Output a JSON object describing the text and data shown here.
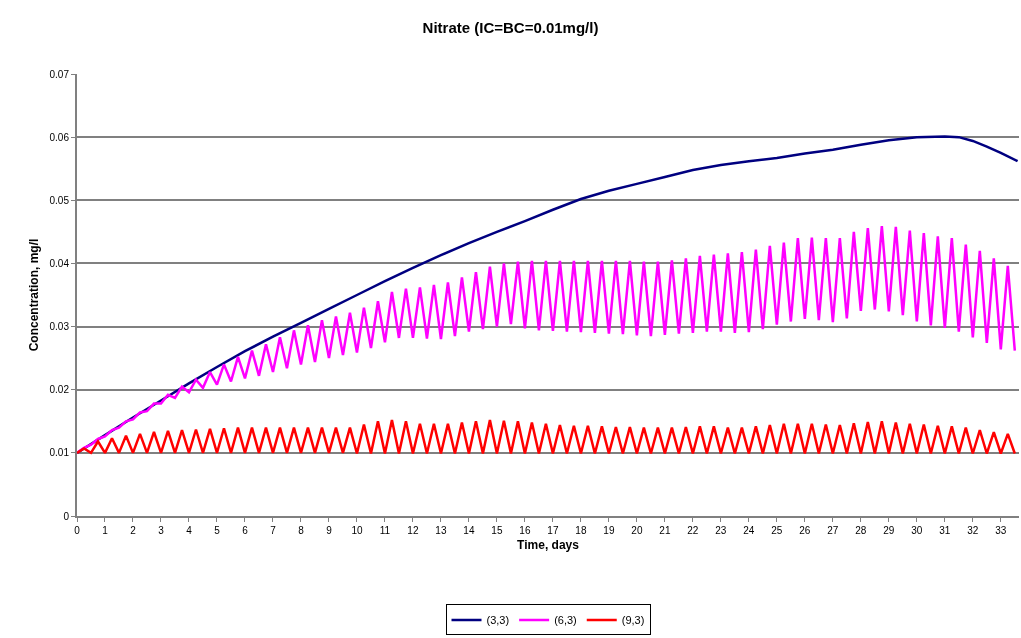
{
  "chart_data": {
    "type": "line",
    "title": "Nitrate (IC=BC=0.01mg/l)",
    "xlabel": "Time, days",
    "ylabel": "Concentration, mg/l",
    "xlim": [
      0,
      33.65
    ],
    "xticks": [
      0,
      1,
      2,
      3,
      4,
      5,
      6,
      7,
      8,
      9,
      10,
      11,
      12,
      13,
      14,
      15,
      16,
      17,
      18,
      19,
      20,
      21,
      22,
      23,
      24,
      25,
      26,
      27,
      28,
      29,
      30,
      31,
      32,
      33
    ],
    "ylim": [
      0,
      0.07
    ],
    "yticks": [
      0,
      0.01,
      0.02,
      0.03,
      0.04,
      0.05,
      0.06,
      0.07
    ],
    "grid": "y",
    "legend": "bottom",
    "marker": "none",
    "line_style": "solid",
    "series": [
      {
        "name": "(3,3)",
        "color": "#000080",
        "x": [
          0,
          1,
          2,
          3,
          4,
          5,
          6,
          7,
          8,
          9,
          10,
          11,
          12,
          13,
          14,
          15,
          16,
          17,
          18,
          19,
          20,
          21,
          22,
          23,
          24,
          25,
          26,
          27,
          28,
          29,
          30,
          31,
          31.5,
          32,
          32.5,
          33,
          33.6
        ],
        "values": [
          0.01,
          0.0128,
          0.0156,
          0.0183,
          0.021,
          0.0236,
          0.0261,
          0.0284,
          0.0306,
          0.0328,
          0.035,
          0.0372,
          0.0393,
          0.0413,
          0.0432,
          0.045,
          0.0467,
          0.0485,
          0.0502,
          0.0515,
          0.0526,
          0.0537,
          0.0548,
          0.0556,
          0.0562,
          0.0567,
          0.0574,
          0.058,
          0.0588,
          0.0595,
          0.06,
          0.0601,
          0.06,
          0.0594,
          0.0585,
          0.0575,
          0.0562
        ]
      },
      {
        "name": "(6,3)",
        "color": "#ff00ff",
        "x": [
          0,
          0.25,
          0.5,
          0.75,
          1,
          1.25,
          1.5,
          1.75,
          2,
          2.25,
          2.5,
          2.75,
          3,
          3.25,
          3.5,
          3.75,
          4,
          4.25,
          4.5,
          4.75,
          5,
          5.25,
          5.5,
          5.75,
          6,
          6.25,
          6.5,
          6.75,
          7,
          7.25,
          7.5,
          7.75,
          8,
          8.25,
          8.5,
          8.75,
          9,
          9.25,
          9.5,
          9.75,
          10,
          10.25,
          10.5,
          10.75,
          11,
          11.25,
          11.5,
          11.75,
          12,
          12.25,
          12.5,
          12.75,
          13,
          13.25,
          13.5,
          13.75,
          14,
          14.25,
          14.5,
          14.75,
          15,
          15.25,
          15.5,
          15.75,
          16,
          16.25,
          16.5,
          16.75,
          17,
          17.25,
          17.5,
          17.75,
          18,
          18.25,
          18.5,
          18.75,
          19,
          19.25,
          19.5,
          19.75,
          20,
          20.25,
          20.5,
          20.75,
          21,
          21.25,
          21.5,
          21.75,
          22,
          22.25,
          22.5,
          22.75,
          23,
          23.25,
          23.5,
          23.75,
          24,
          24.25,
          24.5,
          24.75,
          25,
          25.25,
          25.5,
          25.75,
          26,
          26.25,
          26.5,
          26.75,
          27,
          27.25,
          27.5,
          27.75,
          28,
          28.25,
          28.5,
          28.75,
          29,
          29.25,
          29.5,
          29.75,
          30,
          30.25,
          30.5,
          30.75,
          31,
          31.25,
          31.5,
          31.75,
          32,
          32.25,
          32.5,
          32.75,
          33,
          33.25,
          33.5
        ],
        "values": [
          0.01,
          0.0108,
          0.0113,
          0.0122,
          0.0126,
          0.0136,
          0.014,
          0.015,
          0.0153,
          0.0164,
          0.0166,
          0.0178,
          0.0178,
          0.0192,
          0.0187,
          0.0205,
          0.0196,
          0.0216,
          0.0203,
          0.0228,
          0.0208,
          0.024,
          0.0213,
          0.0252,
          0.0218,
          0.0262,
          0.0222,
          0.0272,
          0.0228,
          0.0283,
          0.0234,
          0.0294,
          0.024,
          0.0302,
          0.0244,
          0.031,
          0.025,
          0.0316,
          0.0255,
          0.0322,
          0.0259,
          0.033,
          0.0266,
          0.034,
          0.0275,
          0.0355,
          0.0282,
          0.036,
          0.0282,
          0.0362,
          0.0281,
          0.0366,
          0.028,
          0.037,
          0.0285,
          0.0378,
          0.0292,
          0.0386,
          0.0296,
          0.0395,
          0.03,
          0.04,
          0.0304,
          0.0403,
          0.0297,
          0.0404,
          0.0294,
          0.0404,
          0.0293,
          0.0404,
          0.0292,
          0.0404,
          0.0291,
          0.0404,
          0.029,
          0.0404,
          0.0289,
          0.0404,
          0.0288,
          0.0404,
          0.0286,
          0.0403,
          0.0285,
          0.0403,
          0.0287,
          0.0405,
          0.0289,
          0.0408,
          0.029,
          0.0412,
          0.0292,
          0.0414,
          0.0292,
          0.0416,
          0.029,
          0.0418,
          0.0291,
          0.0422,
          0.0296,
          0.0428,
          0.0303,
          0.0433,
          0.0308,
          0.044,
          0.0312,
          0.0441,
          0.031,
          0.044,
          0.0307,
          0.044,
          0.0313,
          0.045,
          0.0325,
          0.0456,
          0.0327,
          0.0459,
          0.0324,
          0.0458,
          0.0318,
          0.0452,
          0.0308,
          0.0448,
          0.0302,
          0.0443,
          0.0298,
          0.044,
          0.0292,
          0.043,
          0.0283,
          0.042,
          0.0274,
          0.0408,
          0.0264,
          0.0396,
          0.0262
        ]
      },
      {
        "name": "(9,3)",
        "color": "#ff0000",
        "x": [
          0,
          0.25,
          0.5,
          0.75,
          1,
          1.25,
          1.5,
          1.75,
          2,
          2.25,
          2.5,
          2.75,
          3,
          3.25,
          3.5,
          3.75,
          4,
          4.25,
          4.5,
          4.75,
          5,
          5.25,
          5.5,
          5.75,
          6,
          6.25,
          6.5,
          6.75,
          7,
          7.25,
          7.5,
          7.75,
          8,
          8.25,
          8.5,
          8.75,
          9,
          9.25,
          9.5,
          9.75,
          10,
          10.25,
          10.5,
          10.75,
          11,
          11.25,
          11.5,
          11.75,
          12,
          12.25,
          12.5,
          12.75,
          13,
          13.25,
          13.5,
          13.75,
          14,
          14.25,
          14.5,
          14.75,
          15,
          15.25,
          15.5,
          15.75,
          16,
          16.25,
          16.5,
          16.75,
          17,
          17.25,
          17.5,
          17.75,
          18,
          18.25,
          18.5,
          18.75,
          19,
          19.25,
          19.5,
          19.75,
          20,
          20.25,
          20.5,
          20.75,
          21,
          21.25,
          21.5,
          21.75,
          22,
          22.25,
          22.5,
          22.75,
          23,
          23.25,
          23.5,
          23.75,
          24,
          24.25,
          24.5,
          24.75,
          25,
          25.25,
          25.5,
          25.75,
          26,
          26.25,
          26.5,
          26.75,
          27,
          27.25,
          27.5,
          27.75,
          28,
          28.25,
          28.5,
          28.75,
          29,
          29.25,
          29.5,
          29.75,
          30,
          30.25,
          30.5,
          30.75,
          31,
          31.25,
          31.5,
          31.75,
          32,
          32.25,
          32.5,
          32.75,
          33,
          33.25,
          33.5
        ],
        "values": [
          0.01,
          0.0107,
          0.01,
          0.0118,
          0.01,
          0.0123,
          0.01,
          0.0127,
          0.01,
          0.013,
          0.01,
          0.0133,
          0.01,
          0.0135,
          0.01,
          0.0136,
          0.01,
          0.0137,
          0.01,
          0.0138,
          0.01,
          0.0139,
          0.01,
          0.014,
          0.01,
          0.014,
          0.01,
          0.014,
          0.01,
          0.014,
          0.01,
          0.014,
          0.01,
          0.014,
          0.01,
          0.014,
          0.01,
          0.014,
          0.01,
          0.014,
          0.0099,
          0.0145,
          0.0099,
          0.015,
          0.0099,
          0.0152,
          0.0099,
          0.015,
          0.0099,
          0.0146,
          0.0099,
          0.0146,
          0.0099,
          0.0146,
          0.0099,
          0.0148,
          0.0099,
          0.015,
          0.0099,
          0.0152,
          0.0099,
          0.0151,
          0.0099,
          0.015,
          0.0099,
          0.0148,
          0.0099,
          0.0146,
          0.0099,
          0.0144,
          0.0099,
          0.0143,
          0.0099,
          0.0143,
          0.0099,
          0.0142,
          0.0099,
          0.0141,
          0.0099,
          0.0141,
          0.0099,
          0.014,
          0.0099,
          0.014,
          0.0099,
          0.014,
          0.0099,
          0.0141,
          0.0099,
          0.0142,
          0.0099,
          0.0142,
          0.0099,
          0.014,
          0.0099,
          0.014,
          0.0099,
          0.0142,
          0.0099,
          0.0144,
          0.0099,
          0.0146,
          0.0099,
          0.0146,
          0.0099,
          0.0146,
          0.0099,
          0.0145,
          0.0099,
          0.0144,
          0.0099,
          0.0147,
          0.0099,
          0.0149,
          0.0099,
          0.015,
          0.0099,
          0.0148,
          0.0099,
          0.0146,
          0.0099,
          0.0145,
          0.0099,
          0.0143,
          0.0099,
          0.0142,
          0.0099,
          0.014,
          0.0099,
          0.0136,
          0.0099,
          0.0133,
          0.0099,
          0.013,
          0.0099
        ]
      }
    ]
  }
}
